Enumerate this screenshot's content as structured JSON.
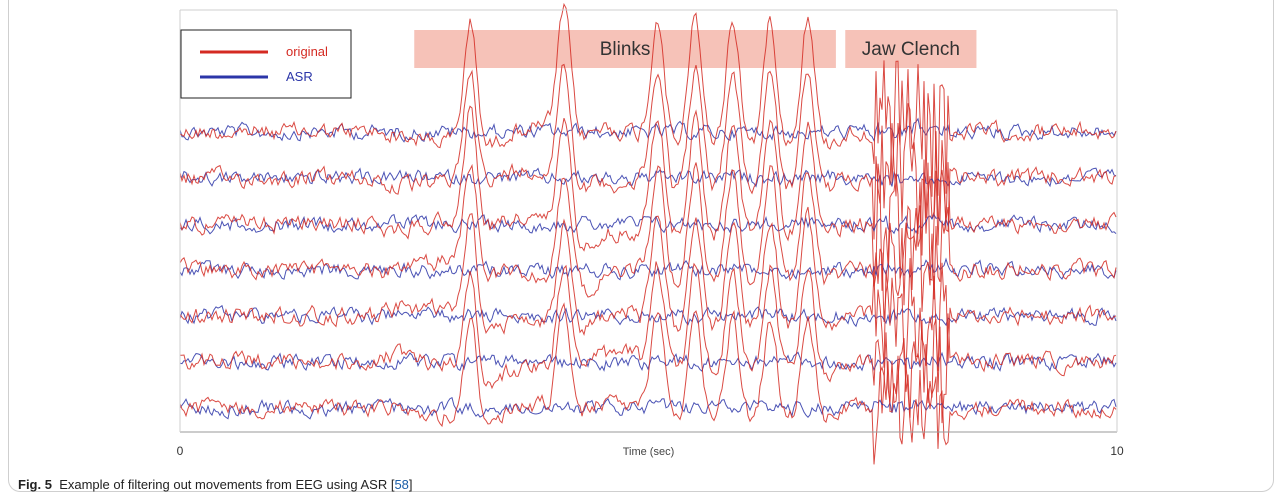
{
  "figure": {
    "label": "Fig. 5",
    "caption": "Example of filtering out movements from EEG using ASR [",
    "ref": "58",
    "caption_end": "]"
  },
  "chart_data": {
    "type": "line",
    "xlabel": "Time (sec)",
    "xlim": [
      0,
      10
    ],
    "x_ticks": [
      "0",
      "10"
    ],
    "channels": 7,
    "series": [
      {
        "name": "original",
        "color": "#d42a22"
      },
      {
        "name": "ASR",
        "color": "#2b35a8"
      }
    ],
    "annotations": [
      {
        "label": "Blinks",
        "x_start": 2.5,
        "x_end": 7.0
      },
      {
        "label": "Jaw Clench",
        "x_start": 7.1,
        "x_end": 8.5
      }
    ],
    "blink_times": [
      3.1,
      4.1,
      5.1,
      5.5,
      5.9,
      6.3,
      6.7
    ],
    "jaw_clench_range": [
      7.4,
      8.2
    ],
    "legend_position": "top-left",
    "colors": {
      "highlight": "#f6c2b8"
    }
  }
}
